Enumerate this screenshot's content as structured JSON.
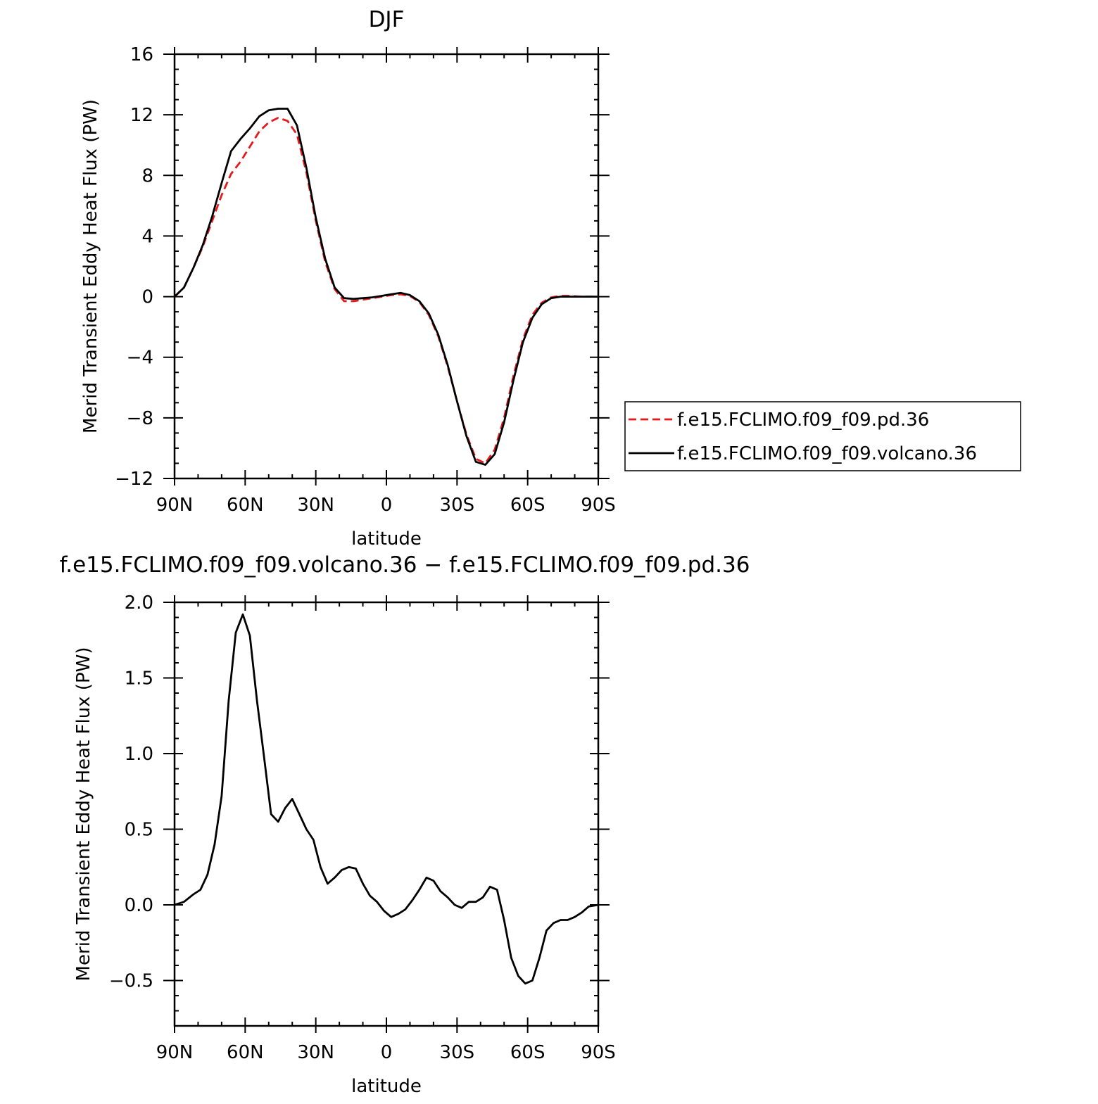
{
  "chart_data": [
    {
      "type": "line",
      "title": "DJF",
      "xlabel": "latitude",
      "ylabel": "Merid Transient Eddy Heat Flux (PW)",
      "xlim": [
        90,
        -90
      ],
      "ylim": [
        -12,
        16
      ],
      "x_ticks": [
        90,
        60,
        30,
        0,
        -30,
        -60,
        -90
      ],
      "x_tick_labels": [
        "90N",
        "60N",
        "30N",
        "0",
        "30S",
        "60S",
        "90S"
      ],
      "y_ticks": [
        -12,
        -8,
        -4,
        0,
        4,
        8,
        12,
        16
      ],
      "y_tick_labels": [
        "−12",
        "−8",
        "−4",
        "0",
        "4",
        "8",
        "12",
        "16"
      ],
      "grid": false,
      "legend_position": "right",
      "series": [
        {
          "name": "f.e15.FCLIMO.f09_f09.pd.36",
          "color": "#e41a1c",
          "dash": "dashed",
          "x": [
            90,
            86,
            82,
            78,
            74,
            70,
            66,
            62,
            58,
            54,
            50,
            46,
            42,
            38,
            34,
            30,
            26,
            22,
            18,
            14,
            10,
            6,
            2,
            -2,
            -6,
            -10,
            -14,
            -18,
            -22,
            -26,
            -30,
            -34,
            -38,
            -42,
            -46,
            -50,
            -54,
            -58,
            -62,
            -66,
            -70,
            -74,
            -78,
            -82,
            -86,
            -90
          ],
          "y": [
            0,
            0.6,
            1.9,
            3.3,
            5.0,
            6.7,
            8.1,
            8.9,
            9.9,
            10.9,
            11.5,
            11.8,
            11.6,
            10.7,
            8.2,
            5.0,
            2.3,
            0.5,
            -0.3,
            -0.3,
            -0.2,
            -0.1,
            0.0,
            0.1,
            0.15,
            0.05,
            -0.35,
            -1.2,
            -2.6,
            -4.6,
            -6.9,
            -9.1,
            -10.7,
            -11.0,
            -10.1,
            -8.0,
            -5.2,
            -2.8,
            -1.2,
            -0.4,
            -0.05,
            0.05,
            0.05,
            0.0,
            0.0,
            0.0
          ]
        },
        {
          "name": "f.e15.FCLIMO.f09_f09.volcano.36",
          "color": "#000000",
          "dash": "solid",
          "x": [
            90,
            86,
            82,
            78,
            74,
            70,
            66,
            62,
            58,
            54,
            50,
            46,
            42,
            38,
            34,
            30,
            26,
            22,
            18,
            14,
            10,
            6,
            2,
            -2,
            -6,
            -10,
            -14,
            -18,
            -22,
            -26,
            -30,
            -34,
            -38,
            -42,
            -46,
            -50,
            -54,
            -58,
            -62,
            -66,
            -70,
            -74,
            -78,
            -82,
            -86,
            -90
          ],
          "y": [
            0,
            0.6,
            1.9,
            3.4,
            5.3,
            7.5,
            9.6,
            10.4,
            11.1,
            11.9,
            12.3,
            12.4,
            12.4,
            11.3,
            8.5,
            5.2,
            2.5,
            0.6,
            -0.1,
            -0.15,
            -0.1,
            -0.05,
            0.05,
            0.15,
            0.25,
            0.1,
            -0.3,
            -1.1,
            -2.5,
            -4.5,
            -6.9,
            -9.2,
            -10.9,
            -11.1,
            -10.4,
            -8.3,
            -5.5,
            -3.0,
            -1.4,
            -0.5,
            -0.1,
            0.0,
            0.0,
            0.0,
            0.0,
            0.0
          ]
        }
      ]
    },
    {
      "type": "line",
      "title": "f.e15.FCLIMO.f09_f09.volcano.36 − f.e15.FCLIMO.f09_f09.pd.36",
      "xlabel": "latitude",
      "ylabel": "Merid Transient Eddy Heat Flux (PW)",
      "xlim": [
        90,
        -90
      ],
      "ylim": [
        -0.8,
        2.0
      ],
      "x_ticks": [
        90,
        60,
        30,
        0,
        -30,
        -60,
        -90
      ],
      "x_tick_labels": [
        "90N",
        "60N",
        "30N",
        "0",
        "30S",
        "60S",
        "90S"
      ],
      "y_ticks": [
        -0.5,
        0.0,
        0.5,
        1.0,
        1.5,
        2.0
      ],
      "y_tick_labels": [
        "−0.5",
        "0.0",
        "0.5",
        "1.0",
        "1.5",
        "2.0"
      ],
      "grid": false,
      "series": [
        {
          "color": "#000000",
          "dash": "solid",
          "x": [
            90,
            86,
            82,
            79,
            76,
            73,
            70,
            67,
            64,
            61,
            58,
            55,
            52,
            49,
            46,
            43,
            40,
            37,
            34,
            31,
            28,
            25,
            22,
            19,
            16,
            13,
            10,
            7,
            4,
            1,
            -2,
            -5,
            -8,
            -11,
            -14,
            -17,
            -20,
            -23,
            -26,
            -29,
            -32,
            -35,
            -38,
            -41,
            -44,
            -47,
            -50,
            -53,
            -56,
            -59,
            -62,
            -65,
            -68,
            -71,
            -74,
            -77,
            -80,
            -83,
            -86,
            -90
          ],
          "y": [
            0.0,
            0.02,
            0.07,
            0.1,
            0.2,
            0.4,
            0.72,
            1.35,
            1.8,
            1.92,
            1.78,
            1.35,
            0.98,
            0.6,
            0.55,
            0.64,
            0.7,
            0.6,
            0.5,
            0.43,
            0.25,
            0.14,
            0.18,
            0.23,
            0.25,
            0.24,
            0.14,
            0.06,
            0.02,
            -0.04,
            -0.08,
            -0.06,
            -0.03,
            0.03,
            0.1,
            0.18,
            0.16,
            0.09,
            0.05,
            0.0,
            -0.02,
            0.02,
            0.02,
            0.05,
            0.12,
            0.1,
            -0.1,
            -0.35,
            -0.47,
            -0.52,
            -0.5,
            -0.35,
            -0.17,
            -0.12,
            -0.1,
            -0.1,
            -0.08,
            -0.05,
            -0.01,
            0.0
          ]
        }
      ]
    }
  ]
}
